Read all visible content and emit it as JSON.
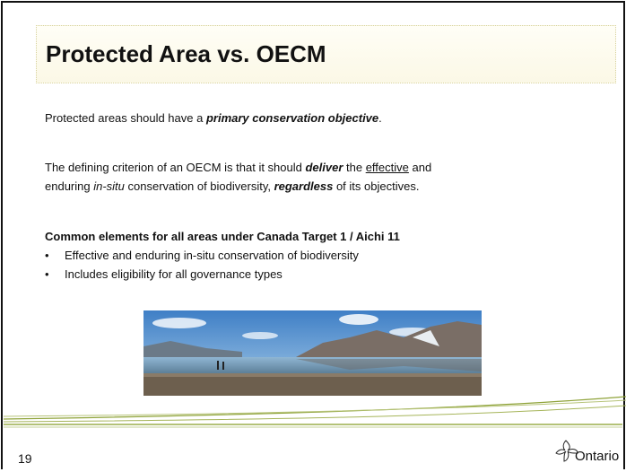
{
  "title": "Protected Area vs. OECM",
  "paragraph_1": [
    "Protected areas should have a ",
    "primary conservation objective",
    "."
  ],
  "paragraph_2": [
    "The defining criterion of an OECM is that it should ",
    "deliver",
    " the ",
    "effective",
    " and",
    "enduring ",
    "in-situ",
    " conservation of biodiversity, ",
    "regardless",
    " of its objectives."
  ],
  "list_heading": "Common elements for all areas under Canada Target 1 / Aichi 11",
  "bullets": [
    "Effective and enduring in-situ conservation of biodiversity",
    "Includes eligibility for all governance types"
  ],
  "page_number": "19",
  "logo": "Ontario"
}
